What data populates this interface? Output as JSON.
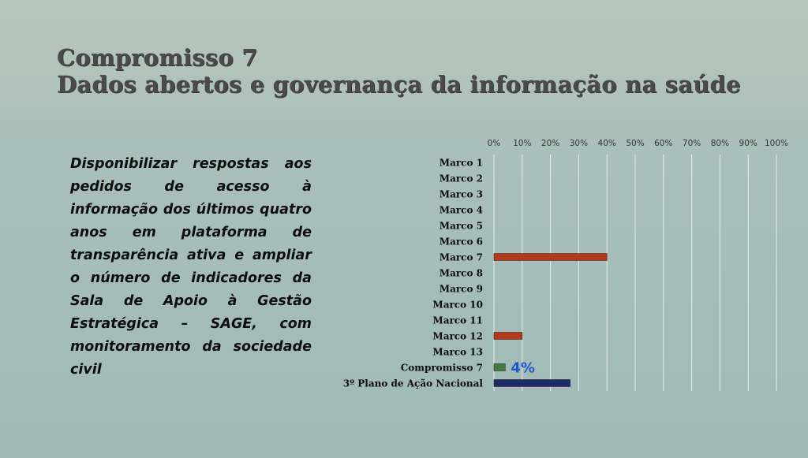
{
  "title": {
    "line1": "Compromisso 7",
    "line2": "Dados abertos e governança da informação na saúde"
  },
  "description": "Disponibilizar respostas aos pedidos de acesso à informação dos últimos quatro anos em plataforma de transparência ativa e ampliar o número de indicadores da Sala de Apoio à Gestão Estratégica – SAGE, com monitoramento da sociedade civil",
  "chart_data": {
    "type": "bar",
    "orientation": "horizontal",
    "categories": [
      "Marco 1",
      "Marco 2",
      "Marco 3",
      "Marco 4",
      "Marco 5",
      "Marco 6",
      "Marco 7",
      "Marco 8",
      "Marco 9",
      "Marco 10",
      "Marco 11",
      "Marco 12",
      "Marco 13",
      "Compromisso 7",
      "3º Plano de Ação Nacional"
    ],
    "values": [
      0,
      0,
      0,
      0,
      0,
      0,
      40,
      0,
      0,
      0,
      0,
      10,
      0,
      4,
      27
    ],
    "colors": [
      "#b03a1c",
      "#b03a1c",
      "#b03a1c",
      "#b03a1c",
      "#b03a1c",
      "#b03a1c",
      "#b03a1c",
      "#b03a1c",
      "#b03a1c",
      "#b03a1c",
      "#b03a1c",
      "#b03a1c",
      "#b03a1c",
      "#3f7a3f",
      "#1c2a66"
    ],
    "xlim": [
      0,
      100
    ],
    "xticks": [
      "0%",
      "10%",
      "20%",
      "30%",
      "40%",
      "50%",
      "60%",
      "70%",
      "80%",
      "90%",
      "100%"
    ],
    "axis_position": "top",
    "grid": true,
    "data_labels": [
      {
        "category": "Compromisso 7",
        "text": "4%",
        "color": "#1f57c8"
      }
    ]
  }
}
